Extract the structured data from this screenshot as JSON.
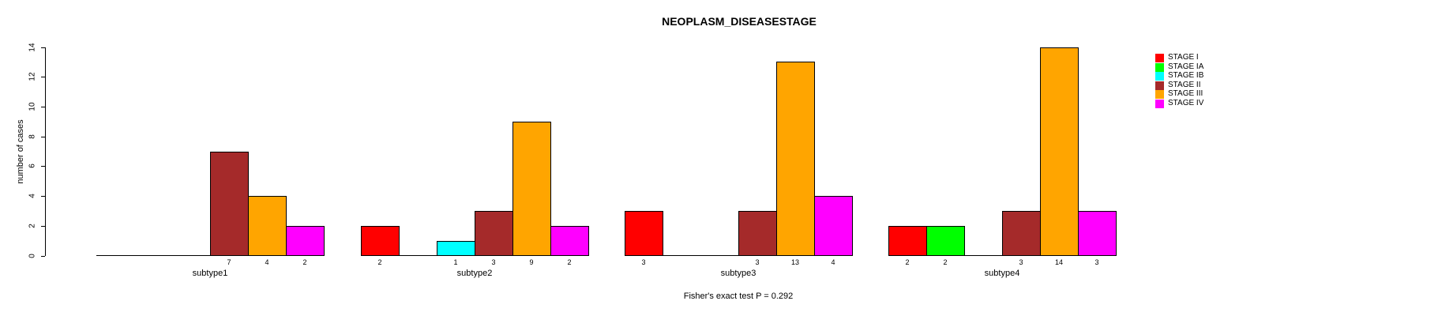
{
  "chart_data": {
    "type": "bar",
    "title": "NEOPLASM_DISEASESTAGE",
    "ylabel": "number of cases",
    "xlabel": "",
    "footer": "Fisher's exact test P = 0.292",
    "ylim": [
      0,
      14
    ],
    "yticks": [
      0,
      2,
      4,
      6,
      8,
      10,
      12,
      14
    ],
    "grid": false,
    "legend_position": "right",
    "bar_value_labels_shown": true,
    "categories": [
      "subtype1",
      "subtype2",
      "subtype3",
      "subtype4"
    ],
    "series": [
      {
        "name": "STAGE I",
        "color": "#FF0000",
        "values": [
          0,
          2,
          3,
          2
        ]
      },
      {
        "name": "STAGE IA",
        "color": "#00FF00",
        "values": [
          0,
          0,
          0,
          2
        ]
      },
      {
        "name": "STAGE IB",
        "color": "#00FFFF",
        "values": [
          0,
          1,
          0,
          0
        ]
      },
      {
        "name": "STAGE II",
        "color": "#A52A2A",
        "values": [
          7,
          3,
          3,
          3
        ]
      },
      {
        "name": "STAGE III",
        "color": "#FFA500",
        "values": [
          4,
          9,
          13,
          14
        ]
      },
      {
        "name": "STAGE IV",
        "color": "#FF00FF",
        "values": [
          2,
          2,
          4,
          3
        ]
      }
    ],
    "colors": {
      "background": "#FFFFFF",
      "axis": "#000000",
      "text": "#000000"
    }
  }
}
